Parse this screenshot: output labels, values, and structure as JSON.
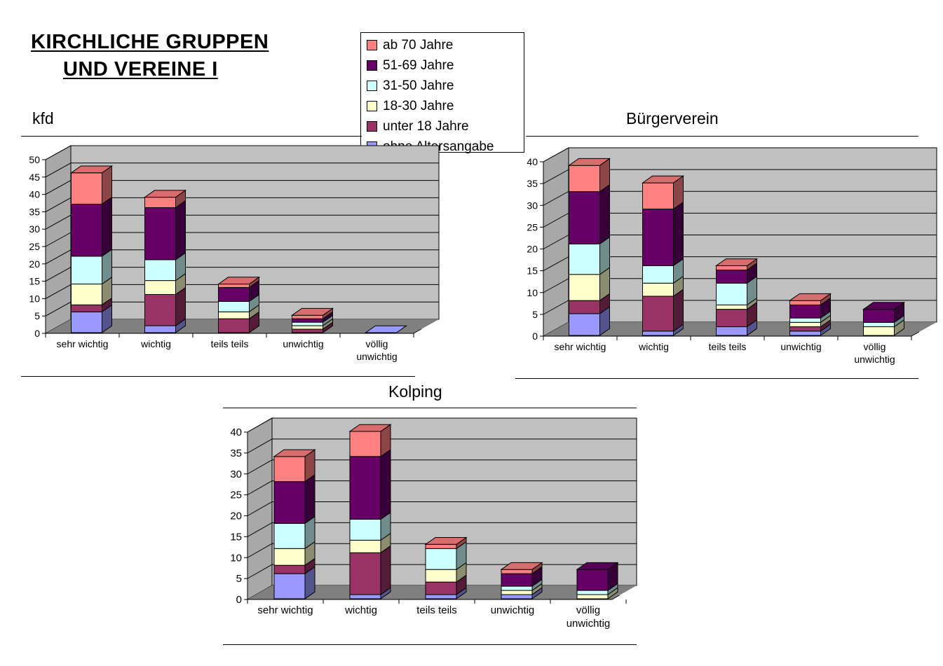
{
  "page": {
    "title_line1": "KIRCHLICHE GRUPPEN",
    "title_line2": "UND VEREINE I"
  },
  "legend": [
    {
      "label": "ab 70 Jahre",
      "color": "#ff8080"
    },
    {
      "label": "51-69 Jahre",
      "color": "#660066"
    },
    {
      "label": "31-50 Jahre",
      "color": "#ccffff"
    },
    {
      "label": "18-30 Jahre",
      "color": "#ffffcc"
    },
    {
      "label": "unter 18 Jahre",
      "color": "#993366"
    },
    {
      "label": "ohne Altersangabe",
      "color": "#9999ff"
    }
  ],
  "chart_data": [
    {
      "type": "bar",
      "stacked": true,
      "three_d": true,
      "title": "kfd",
      "categories": [
        "sehr wichtig",
        "wichtig",
        "teils teils",
        "unwichtig",
        "völlig unwichtig"
      ],
      "ylim": [
        0,
        50
      ],
      "yticks": [
        0,
        5,
        10,
        15,
        20,
        25,
        30,
        35,
        40,
        45,
        50
      ],
      "grid": true,
      "legend_position": "top-center",
      "series": [
        {
          "name": "ohne Altersangabe",
          "values": [
            6,
            2,
            0,
            0,
            0
          ]
        },
        {
          "name": "unter 18 Jahre",
          "values": [
            2,
            9,
            4,
            1,
            0
          ]
        },
        {
          "name": "18-30 Jahre",
          "values": [
            6,
            4,
            2,
            1,
            0
          ]
        },
        {
          "name": "31-50 Jahre",
          "values": [
            8,
            6,
            3,
            1,
            0
          ]
        },
        {
          "name": "51-69 Jahre",
          "values": [
            15,
            15,
            4,
            1,
            0
          ]
        },
        {
          "name": "ab 70 Jahre",
          "values": [
            9,
            3,
            1,
            1,
            0
          ]
        }
      ]
    },
    {
      "type": "bar",
      "stacked": true,
      "three_d": true,
      "title": "Bürgerverein",
      "categories": [
        "sehr wichtig",
        "wichtig",
        "teils teils",
        "unwichtig",
        "völlig unwichtig"
      ],
      "ylim": [
        0,
        40
      ],
      "yticks": [
        0,
        5,
        10,
        15,
        20,
        25,
        30,
        35,
        40
      ],
      "grid": true,
      "series": [
        {
          "name": "ohne Altersangabe",
          "values": [
            5,
            1,
            2,
            1,
            0
          ]
        },
        {
          "name": "unter 18 Jahre",
          "values": [
            3,
            8,
            4,
            1,
            0
          ]
        },
        {
          "name": "18-30 Jahre",
          "values": [
            6,
            3,
            1,
            1,
            2
          ]
        },
        {
          "name": "31-50 Jahre",
          "values": [
            7,
            4,
            5,
            1,
            1
          ]
        },
        {
          "name": "51-69 Jahre",
          "values": [
            12,
            13,
            3,
            3,
            3
          ]
        },
        {
          "name": "ab 70 Jahre",
          "values": [
            6,
            6,
            1,
            1,
            0
          ]
        }
      ]
    },
    {
      "type": "bar",
      "stacked": true,
      "three_d": true,
      "title": "Kolping",
      "categories": [
        "sehr wichtig",
        "wichtig",
        "teils teils",
        "unwichtig",
        "völlig unwichtig"
      ],
      "ylim": [
        0,
        40
      ],
      "yticks": [
        0,
        5,
        10,
        15,
        20,
        25,
        30,
        35,
        40
      ],
      "grid": true,
      "series": [
        {
          "name": "ohne Altersangabe",
          "values": [
            6,
            1,
            1,
            1,
            0
          ]
        },
        {
          "name": "unter 18 Jahre",
          "values": [
            2,
            10,
            3,
            0,
            0
          ]
        },
        {
          "name": "18-30 Jahre",
          "values": [
            4,
            3,
            3,
            1,
            1
          ]
        },
        {
          "name": "31-50 Jahre",
          "values": [
            6,
            5,
            5,
            1,
            1
          ]
        },
        {
          "name": "51-69 Jahre",
          "values": [
            10,
            15,
            0,
            3,
            5
          ]
        },
        {
          "name": "ab 70 Jahre",
          "values": [
            6,
            6,
            1,
            1,
            0
          ]
        }
      ]
    }
  ]
}
